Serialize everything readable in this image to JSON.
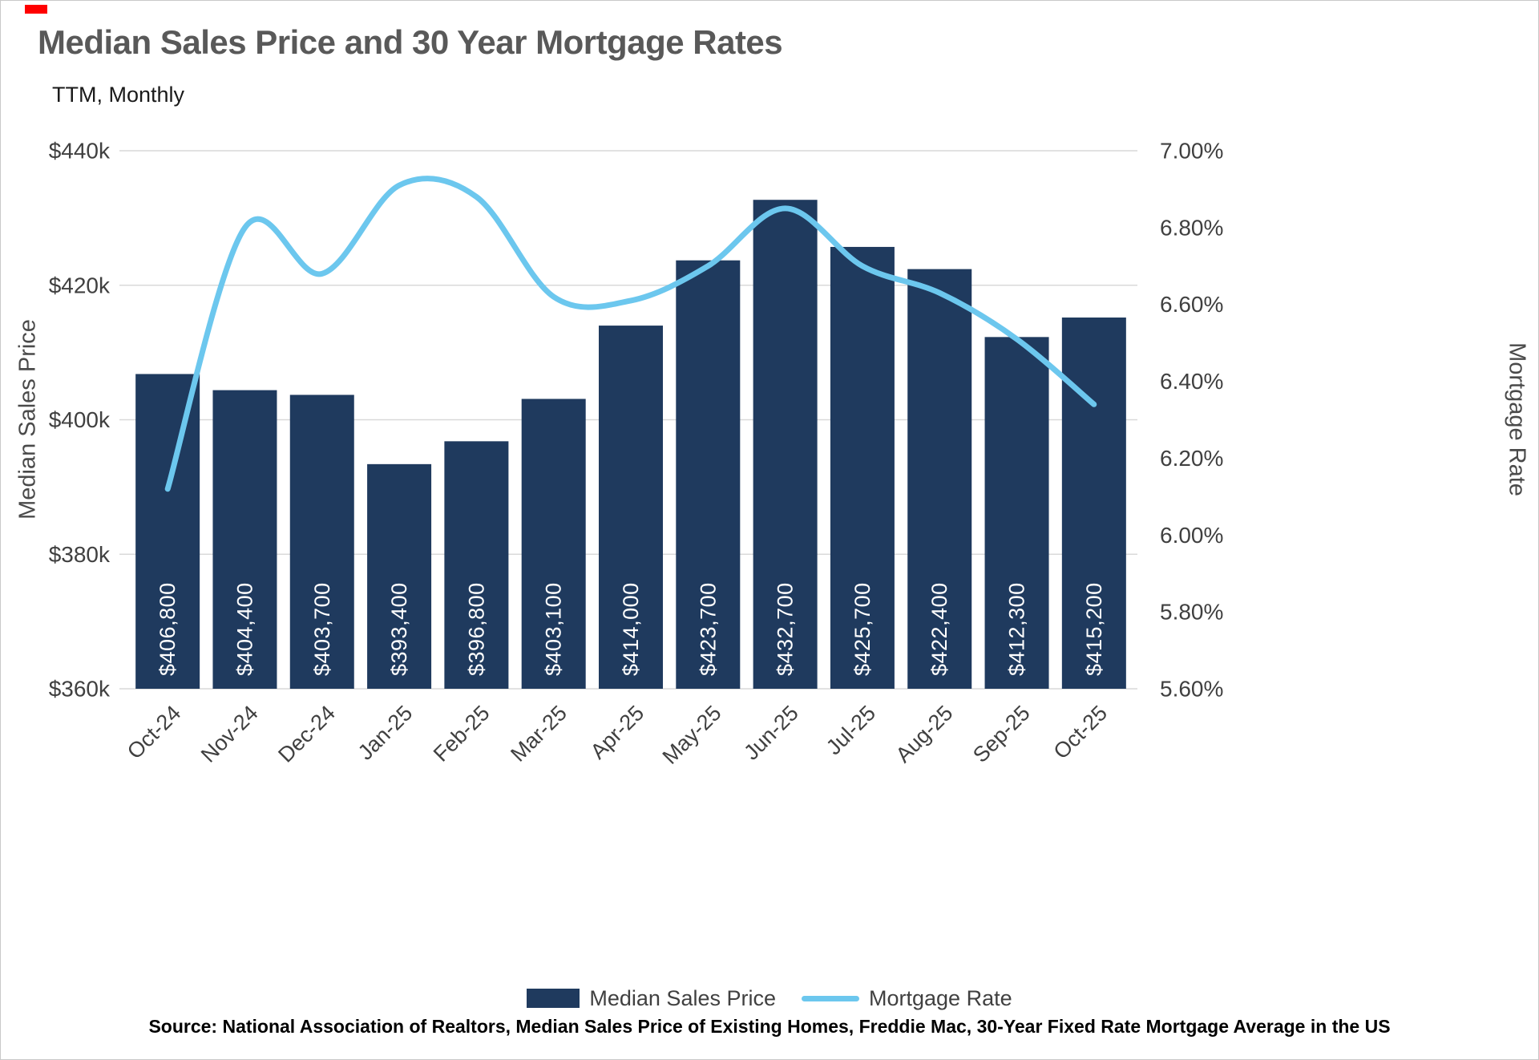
{
  "page": {
    "title": "Median Sales Price and 30 Year Mortgage Rates",
    "subtitle": "TTM, Monthly",
    "source": "Source: National Association of Realtors, Median Sales Price of Existing Homes, Freddie Mac, 30-Year Fixed Rate Mortgage Average in the US"
  },
  "legend": {
    "bars_label": "Median Sales Price",
    "line_label": "Mortgage Rate"
  },
  "colors": {
    "bar": "#1F3A5E",
    "line": "#6CC7EE",
    "grid": "#D9D9D9",
    "axis_text": "#404040",
    "title": "#595959",
    "bar_label_text": "#FFFFFF"
  },
  "chart_data": {
    "type": "bar",
    "subtype": "combo-bar-line",
    "title": "Median Sales Price and 30 Year Mortgage Rates",
    "subtitle": "TTM, Monthly",
    "categories": [
      "Oct-24",
      "Nov-24",
      "Dec-24",
      "Jan-25",
      "Feb-25",
      "Mar-25",
      "Apr-25",
      "May-25",
      "Jun-25",
      "Jul-25",
      "Aug-25",
      "Sep-25",
      "Oct-25"
    ],
    "series": [
      {
        "name": "Median Sales Price",
        "type": "bar",
        "axis": "left",
        "values": [
          406800,
          404400,
          403700,
          393400,
          396800,
          403100,
          414000,
          423700,
          432700,
          425700,
          422400,
          412300,
          415200
        ],
        "labels": [
          "$406,800",
          "$404,400",
          "$403,700",
          "$393,400",
          "$396,800",
          "$403,100",
          "$414,000",
          "$423,700",
          "$432,700",
          "$425,700",
          "$422,400",
          "$412,300",
          "$415,200"
        ]
      },
      {
        "name": "Mortgage Rate",
        "type": "line",
        "axis": "right",
        "values": [
          6.12,
          6.8,
          6.68,
          6.91,
          6.88,
          6.62,
          6.61,
          6.7,
          6.85,
          6.7,
          6.63,
          6.51,
          6.34
        ]
      }
    ],
    "left_axis": {
      "title": "Median Sales Price",
      "range": [
        360000,
        440000
      ],
      "ticks": [
        {
          "label": "$360k",
          "value": 360000
        },
        {
          "label": "$380k",
          "value": 380000
        },
        {
          "label": "$400k",
          "value": 400000
        },
        {
          "label": "$420k",
          "value": 420000
        },
        {
          "label": "$440k",
          "value": 440000
        }
      ]
    },
    "right_axis": {
      "title": "Mortgage Rate",
      "range": [
        5.6,
        7.0
      ],
      "ticks": [
        {
          "label": "5.60%",
          "value": 5.6
        },
        {
          "label": "5.80%",
          "value": 5.8
        },
        {
          "label": "6.00%",
          "value": 6.0
        },
        {
          "label": "6.20%",
          "value": 6.2
        },
        {
          "label": "6.40%",
          "value": 6.4
        },
        {
          "label": "6.60%",
          "value": 6.6
        },
        {
          "label": "6.80%",
          "value": 6.8
        },
        {
          "label": "7.00%",
          "value": 7.0
        }
      ]
    },
    "grid": true,
    "legend_position": "bottom"
  }
}
